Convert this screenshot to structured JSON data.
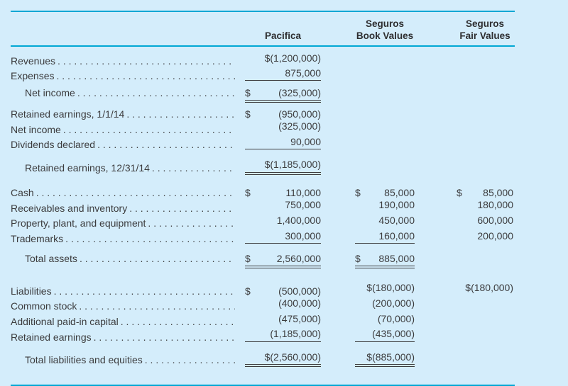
{
  "colors": {
    "background": "#d4edfb",
    "rule_teal": "#00a7d4",
    "text": "#3c3c3e"
  },
  "leader_pattern": ". ",
  "header": {
    "pacifica": "Pacifica",
    "book_line1": "Seguros",
    "book_line2": "Book Values",
    "fair_line1": "Seguros",
    "fair_line2": "Fair Values"
  },
  "rows": [
    {
      "label": "Revenues",
      "indent": false,
      "spacing": "",
      "cells": {
        "pac": {
          "d": "",
          "v": "$(1,200,000)",
          "r": "none"
        },
        "book": null,
        "fair": null
      }
    },
    {
      "label": "Expenses",
      "indent": false,
      "spacing": "",
      "cells": {
        "pac": {
          "d": "",
          "v": "875,000",
          "r": "single"
        },
        "book": null,
        "fair": null
      }
    },
    {
      "label": "Net income",
      "indent": true,
      "spacing": "small",
      "cells": {
        "pac": {
          "d": "$",
          "v": "(325,000)",
          "r": "double"
        },
        "book": null,
        "fair": null
      }
    },
    {
      "label": "Retained earnings, 1/1/14",
      "indent": false,
      "spacing": "medium",
      "cells": {
        "pac": {
          "d": "$",
          "v": "(950,000)",
          "r": "none"
        },
        "book": null,
        "fair": null
      }
    },
    {
      "label": "Net income",
      "indent": false,
      "spacing": "",
      "cells": {
        "pac": {
          "d": "",
          "v": "(325,000)",
          "r": "none"
        },
        "book": null,
        "fair": null
      }
    },
    {
      "label": "Dividends declared",
      "indent": false,
      "spacing": "",
      "cells": {
        "pac": {
          "d": "",
          "v": "90,000",
          "r": "single"
        },
        "book": null,
        "fair": null
      }
    },
    {
      "label": "Retained earnings, 12/31/14",
      "indent": true,
      "spacing": "medium",
      "cells": {
        "pac": {
          "d": "",
          "v": "$(1,185,000)",
          "r": "double"
        },
        "book": null,
        "fair": null
      }
    },
    {
      "label": "Cash",
      "indent": false,
      "spacing": "large",
      "cells": {
        "pac": {
          "d": "$",
          "v": "110,000",
          "r": "none"
        },
        "book": {
          "d": "$",
          "v": "85,000",
          "r": "none"
        },
        "fair": {
          "d": "$",
          "v": "85,000",
          "r": "none"
        }
      }
    },
    {
      "label": "Receivables and inventory",
      "indent": false,
      "spacing": "",
      "cells": {
        "pac": {
          "d": "",
          "v": "750,000",
          "r": "none"
        },
        "book": {
          "d": "",
          "v": "190,000",
          "r": "none"
        },
        "fair": {
          "d": "",
          "v": "180,000",
          "r": "none"
        }
      }
    },
    {
      "label": "Property, plant, and equipment",
      "indent": false,
      "spacing": "",
      "cells": {
        "pac": {
          "d": "",
          "v": "1,400,000",
          "r": "none"
        },
        "book": {
          "d": "",
          "v": "450,000",
          "r": "none"
        },
        "fair": {
          "d": "",
          "v": "600,000",
          "r": "none"
        }
      }
    },
    {
      "label": "Trademarks",
      "indent": false,
      "spacing": "",
      "cells": {
        "pac": {
          "d": "",
          "v": "300,000",
          "r": "single"
        },
        "book": {
          "d": "",
          "v": "160,000",
          "r": "single"
        },
        "fair": {
          "d": "",
          "v": "200,000",
          "r": "none"
        }
      }
    },
    {
      "label": "Total assets",
      "indent": true,
      "spacing": "medium",
      "cells": {
        "pac": {
          "d": "$",
          "v": "2,560,000",
          "r": "double"
        },
        "book": {
          "d": "$",
          "v": "885,000",
          "r": "double"
        },
        "fair": null
      }
    },
    {
      "label": "Liabilities",
      "indent": false,
      "spacing": "xlarge",
      "cells": {
        "pac": {
          "d": "$",
          "v": "(500,000)",
          "r": "none"
        },
        "book": {
          "d": "",
          "v": "$(180,000)",
          "r": "none"
        },
        "fair": {
          "d": "",
          "v": "$(180,000)",
          "r": "none"
        }
      }
    },
    {
      "label": "Common stock",
      "indent": false,
      "spacing": "",
      "cells": {
        "pac": {
          "d": "",
          "v": "(400,000)",
          "r": "none"
        },
        "book": {
          "d": "",
          "v": "(200,000)",
          "r": "none"
        },
        "fair": null
      }
    },
    {
      "label": "Additional paid-in capital",
      "indent": false,
      "spacing": "",
      "cells": {
        "pac": {
          "d": "",
          "v": "(475,000)",
          "r": "none"
        },
        "book": {
          "d": "",
          "v": "(70,000)",
          "r": "none"
        },
        "fair": null
      }
    },
    {
      "label": "Retained earnings",
      "indent": false,
      "spacing": "",
      "cells": {
        "pac": {
          "d": "",
          "v": "(1,185,000)",
          "r": "single"
        },
        "book": {
          "d": "",
          "v": "(435,000)",
          "r": "single"
        },
        "fair": null
      }
    },
    {
      "label": "Total liabilities and equities",
      "indent": true,
      "spacing": "medium",
      "cells": {
        "pac": {
          "d": "",
          "v": "$(2,560,000)",
          "r": "double"
        },
        "book": {
          "d": "",
          "v": "$(885,000)",
          "r": "double"
        },
        "fair": null
      }
    }
  ]
}
